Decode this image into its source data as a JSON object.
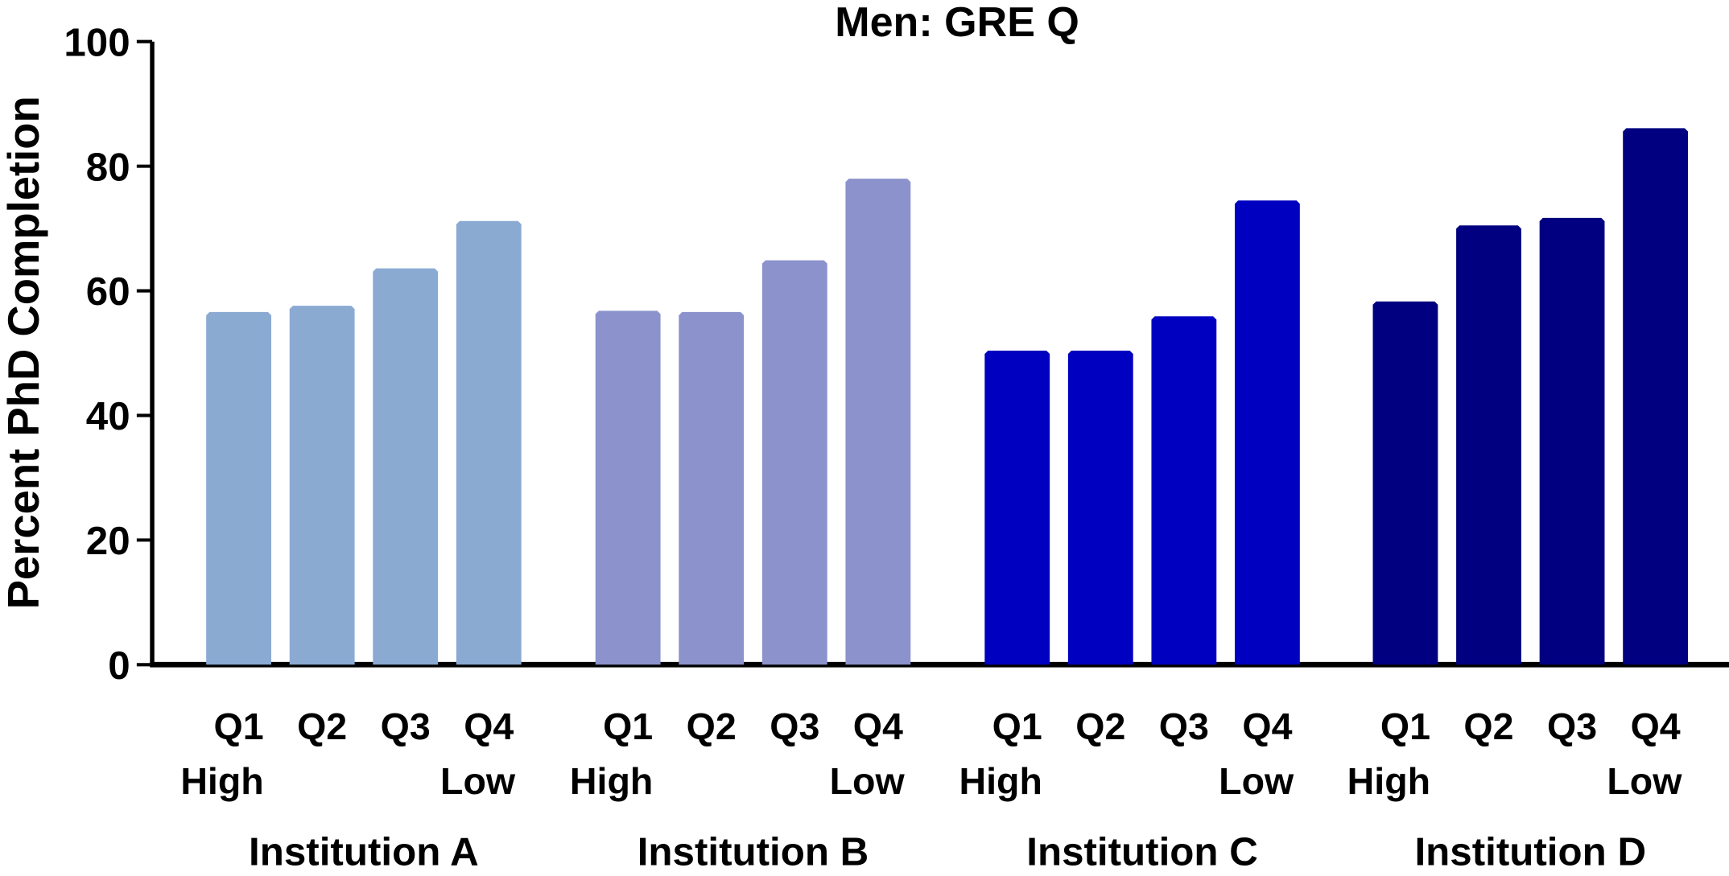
{
  "chart_data": {
    "type": "bar",
    "title": "Men: GRE Q",
    "ylabel": "Percent PhD Completion",
    "xlabel": "",
    "ylim": [
      0,
      100
    ],
    "yticks": [
      "0",
      "20",
      "40",
      "60",
      "80",
      "100"
    ],
    "grid": false,
    "groups": [
      {
        "name": "Institution A",
        "color": "#8aaad2",
        "values": [
          56.6,
          57.6,
          63.6,
          71.2
        ]
      },
      {
        "name": "Institution B",
        "color": "#8b92cc",
        "values": [
          56.8,
          56.6,
          64.9,
          78.0
        ]
      },
      {
        "name": "Institution C",
        "color": "#0000c0",
        "values": [
          50.4,
          50.4,
          55.9,
          74.5
        ]
      },
      {
        "name": "Institution D",
        "color": "#000080",
        "values": [
          58.3,
          70.5,
          71.7,
          86.1
        ]
      }
    ],
    "categories": [
      "Q1",
      "Q2",
      "Q3",
      "Q4"
    ],
    "category_sublabels": [
      "High",
      "",
      "",
      "Low"
    ]
  }
}
